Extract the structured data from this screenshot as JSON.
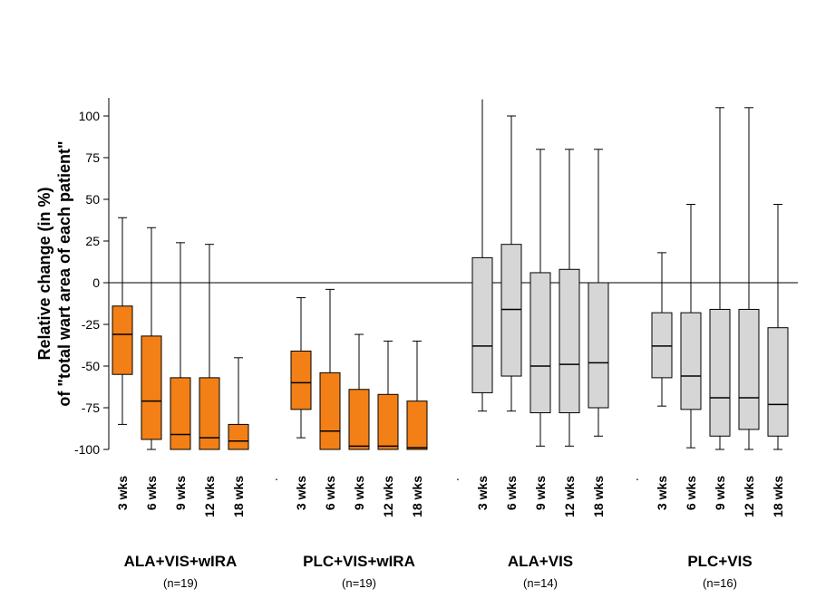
{
  "chart_data": {
    "type": "boxplot",
    "ylabel_lines": [
      "Relative change (in %)",
      "of \"total wart area of each patient\""
    ],
    "ylim": [
      -100,
      110
    ],
    "yticks": [
      100,
      75,
      50,
      25,
      0,
      -25,
      -50,
      -75,
      -100
    ],
    "ytick_labels": [
      "100",
      "75",
      "50",
      "25",
      "0",
      "-25",
      "-50",
      "-75",
      "-100"
    ],
    "reference_line": 0,
    "separator_label": ".",
    "colors": {
      "orange": "#f28016",
      "gray": "#d6d6d6",
      "stroke": "#000000"
    },
    "groups": [
      {
        "name": "ALA+VIS+wIRA",
        "n": "(n=19)",
        "color": "orange",
        "boxes": [
          {
            "label": "3 wks",
            "whisker_low": -85,
            "q1": -55,
            "median": -31,
            "q3": -14,
            "whisker_high": 39
          },
          {
            "label": "6 wks",
            "whisker_low": -100,
            "q1": -94,
            "median": -71,
            "q3": -32,
            "whisker_high": 33
          },
          {
            "label": "9 wks",
            "whisker_low": -100,
            "q1": -100,
            "median": -91,
            "q3": -57,
            "whisker_high": 24
          },
          {
            "label": "12 wks",
            "whisker_low": -100,
            "q1": -100,
            "median": -93,
            "q3": -57,
            "whisker_high": 23
          },
          {
            "label": "18 wks",
            "whisker_low": -100,
            "q1": -100,
            "median": -95,
            "q3": -85,
            "whisker_high": -45
          }
        ]
      },
      {
        "name": "PLC+VIS+wIRA",
        "n": "(n=19)",
        "color": "orange",
        "boxes": [
          {
            "label": "3 wks",
            "whisker_low": -93,
            "q1": -76,
            "median": -60,
            "q3": -41,
            "whisker_high": -9
          },
          {
            "label": "6 wks",
            "whisker_low": -100,
            "q1": -100,
            "median": -89,
            "q3": -54,
            "whisker_high": -4
          },
          {
            "label": "9 wks",
            "whisker_low": -100,
            "q1": -100,
            "median": -98,
            "q3": -64,
            "whisker_high": -31
          },
          {
            "label": "12 wks",
            "whisker_low": -100,
            "q1": -100,
            "median": -98,
            "q3": -67,
            "whisker_high": -35
          },
          {
            "label": "18 wks",
            "whisker_low": -100,
            "q1": -100,
            "median": -99,
            "q3": -71,
            "whisker_high": -35
          }
        ]
      },
      {
        "name": "ALA+VIS",
        "n": "(n=14)",
        "color": "gray",
        "boxes": [
          {
            "label": "3 wks",
            "whisker_low": -77,
            "q1": -66,
            "median": -38,
            "q3": 15,
            "whisker_high": 110
          },
          {
            "label": "6 wks",
            "whisker_low": -77,
            "q1": -56,
            "median": -16,
            "q3": 23,
            "whisker_high": 100
          },
          {
            "label": "9 wks",
            "whisker_low": -98,
            "q1": -78,
            "median": -50,
            "q3": 6,
            "whisker_high": 80
          },
          {
            "label": "12 wks",
            "whisker_low": -98,
            "q1": -78,
            "median": -49,
            "q3": 8,
            "whisker_high": 80
          },
          {
            "label": "18 wks",
            "whisker_low": -92,
            "q1": -75,
            "median": -48,
            "q3": 0,
            "whisker_high": 80
          }
        ]
      },
      {
        "name": "PLC+VIS",
        "n": "(n=16)",
        "color": "gray",
        "boxes": [
          {
            "label": "3 wks",
            "whisker_low": -74,
            "q1": -57,
            "median": -38,
            "q3": -18,
            "whisker_high": 18
          },
          {
            "label": "6 wks",
            "whisker_low": -99,
            "q1": -76,
            "median": -56,
            "q3": -18,
            "whisker_high": 47
          },
          {
            "label": "9 wks",
            "whisker_low": -100,
            "q1": -92,
            "median": -69,
            "q3": -16,
            "whisker_high": 105
          },
          {
            "label": "12 wks",
            "whisker_low": -100,
            "q1": -88,
            "median": -69,
            "q3": -16,
            "whisker_high": 105
          },
          {
            "label": "18 wks",
            "whisker_low": -100,
            "q1": -92,
            "median": -73,
            "q3": -27,
            "whisker_high": 47
          }
        ]
      }
    ]
  }
}
